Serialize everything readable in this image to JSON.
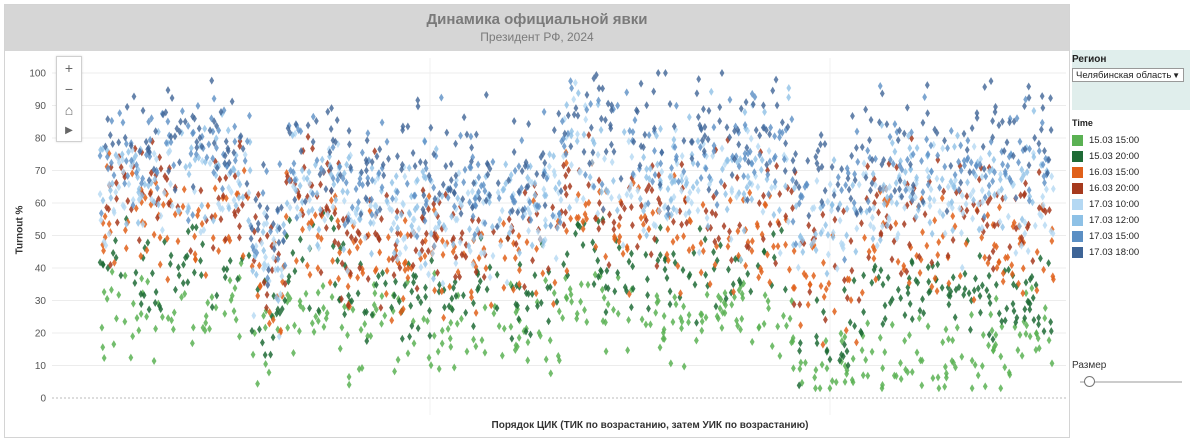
{
  "header": {
    "title": "Динамика официальной явки",
    "subtitle": "Президент РФ, 2024"
  },
  "toolbar": {
    "zoom_in": "+",
    "zoom_out": "−",
    "home": "⌂",
    "play": "▶"
  },
  "filter": {
    "label": "Регион",
    "value": "Челябинская область",
    "arrow": "▼"
  },
  "legend": {
    "title": "Time",
    "items": [
      {
        "label": "15.03 15:00",
        "color": "#5ab153"
      },
      {
        "label": "15.03 20:00",
        "color": "#1f6b36"
      },
      {
        "label": "16.03 15:00",
        "color": "#e0601a"
      },
      {
        "label": "16.03 20:00",
        "color": "#a63a1e"
      },
      {
        "label": "17.03 10:00",
        "color": "#b4d8f3"
      },
      {
        "label": "17.03 12:00",
        "color": "#8ec1e6"
      },
      {
        "label": "17.03 15:00",
        "color": "#5b8fc4"
      },
      {
        "label": "17.03 18:00",
        "color": "#3e6496"
      }
    ]
  },
  "size_control": {
    "label": "Размер",
    "value": 0.0
  },
  "chart_data": {
    "type": "scatter",
    "title": "Динамика официальной явки",
    "subtitle": "Президент РФ, 2024",
    "xlabel": "Порядок ЦИК (ТИК по возрастанию, затем УИК по возрастанию)",
    "ylabel": "Turnout %",
    "ylim": [
      0,
      100
    ],
    "yticks": [
      0,
      10,
      20,
      30,
      40,
      50,
      60,
      70,
      80,
      90,
      100
    ],
    "grid": true,
    "legend_position": "right",
    "x_range": [
      0,
      950
    ],
    "segments": [
      {
        "x_from": 0,
        "x_to": 150,
        "levels": [
          27,
          38,
          55,
          62,
          64,
          68,
          75,
          80
        ]
      },
      {
        "x_from": 150,
        "x_to": 185,
        "levels": [
          15,
          22,
          35,
          40,
          42,
          45,
          50,
          55
        ]
      },
      {
        "x_from": 185,
        "x_to": 240,
        "levels": [
          26,
          40,
          52,
          62,
          64,
          66,
          70,
          75
        ]
      },
      {
        "x_from": 240,
        "x_to": 460,
        "levels": [
          20,
          32,
          42,
          50,
          55,
          60,
          66,
          72
        ]
      },
      {
        "x_from": 460,
        "x_to": 500,
        "levels": [
          30,
          45,
          60,
          68,
          72,
          78,
          82,
          88
        ]
      },
      {
        "x_from": 500,
        "x_to": 690,
        "levels": [
          25,
          38,
          50,
          58,
          65,
          70,
          75,
          82
        ]
      },
      {
        "x_from": 690,
        "x_to": 760,
        "levels": [
          12,
          20,
          35,
          45,
          52,
          55,
          62,
          70
        ]
      },
      {
        "x_from": 760,
        "x_to": 880,
        "levels": [
          14,
          35,
          48,
          58,
          62,
          66,
          72,
          78
        ]
      },
      {
        "x_from": 880,
        "x_to": 950,
        "levels": [
          18,
          30,
          45,
          55,
          60,
          68,
          75,
          82
        ]
      }
    ],
    "series": [
      {
        "name": "15.03 15:00",
        "color": "#5ab153"
      },
      {
        "name": "15.03 20:00",
        "color": "#1f6b36"
      },
      {
        "name": "16.03 15:00",
        "color": "#e0601a"
      },
      {
        "name": "16.03 20:00",
        "color": "#a63a1e"
      },
      {
        "name": "17.03 10:00",
        "color": "#b4d8f3"
      },
      {
        "name": "17.03 12:00",
        "color": "#8ec1e6"
      },
      {
        "name": "17.03 15:00",
        "color": "#5b8fc4"
      },
      {
        "name": "17.03 18:00",
        "color": "#3e6496"
      }
    ]
  }
}
